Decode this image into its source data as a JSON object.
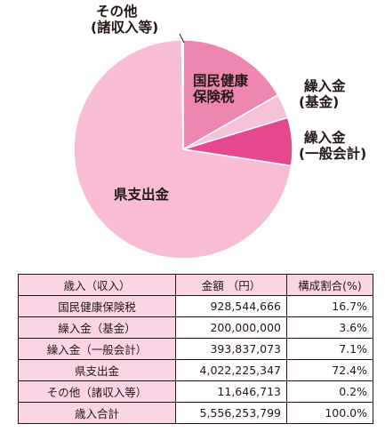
{
  "chart_data": {
    "type": "pie",
    "slices": [
      {
        "label": "国民健康保険税",
        "value": 928544666,
        "percent": 16.7,
        "color": "#ee86b2"
      },
      {
        "label": "繰入金（基金）",
        "value": 200000000,
        "percent": 3.6,
        "color": "#f7c2d9"
      },
      {
        "label": "繰入金（一般会計）",
        "value": 393837073,
        "percent": 7.1,
        "color": "#e5488f"
      },
      {
        "label": "県支出金",
        "value": 4022225347,
        "percent": 72.4,
        "color": "#f8bcd4"
      },
      {
        "label": "その他（諸収入等）",
        "value": 11646713,
        "percent": 0.2,
        "color": "#f8bcd4"
      }
    ]
  },
  "labels": {
    "other_l1": "その他",
    "other_l2": "(諸収入等)",
    "nhi_l1": "国民健康",
    "nhi_l2": "保険税",
    "fund_l1": "繰入金",
    "fund_l2": "(基金)",
    "general_l1": "繰入金",
    "general_l2": "(一般会計)",
    "pref": "県支出金"
  },
  "table": {
    "headers": [
      "歳入（収入）",
      "金額 （円）",
      "構成割合(%)"
    ],
    "rows": [
      {
        "label": "国民健康保険税",
        "amount": "928,544,666",
        "share": "16.7%"
      },
      {
        "label": "繰入金（基金）",
        "amount": "200,000,000",
        "share": "3.6%"
      },
      {
        "label": "繰入金（一般会計）",
        "amount": "393,837,073",
        "share": "7.1%"
      },
      {
        "label": "県支出金",
        "amount": "4,022,225,347",
        "share": "72.4%"
      },
      {
        "label": "その他（諸収入等）",
        "amount": "11,646,713",
        "share": "0.2%"
      },
      {
        "label": "歳入合計",
        "amount": "5,556,253,799",
        "share": "100.0%"
      }
    ]
  }
}
